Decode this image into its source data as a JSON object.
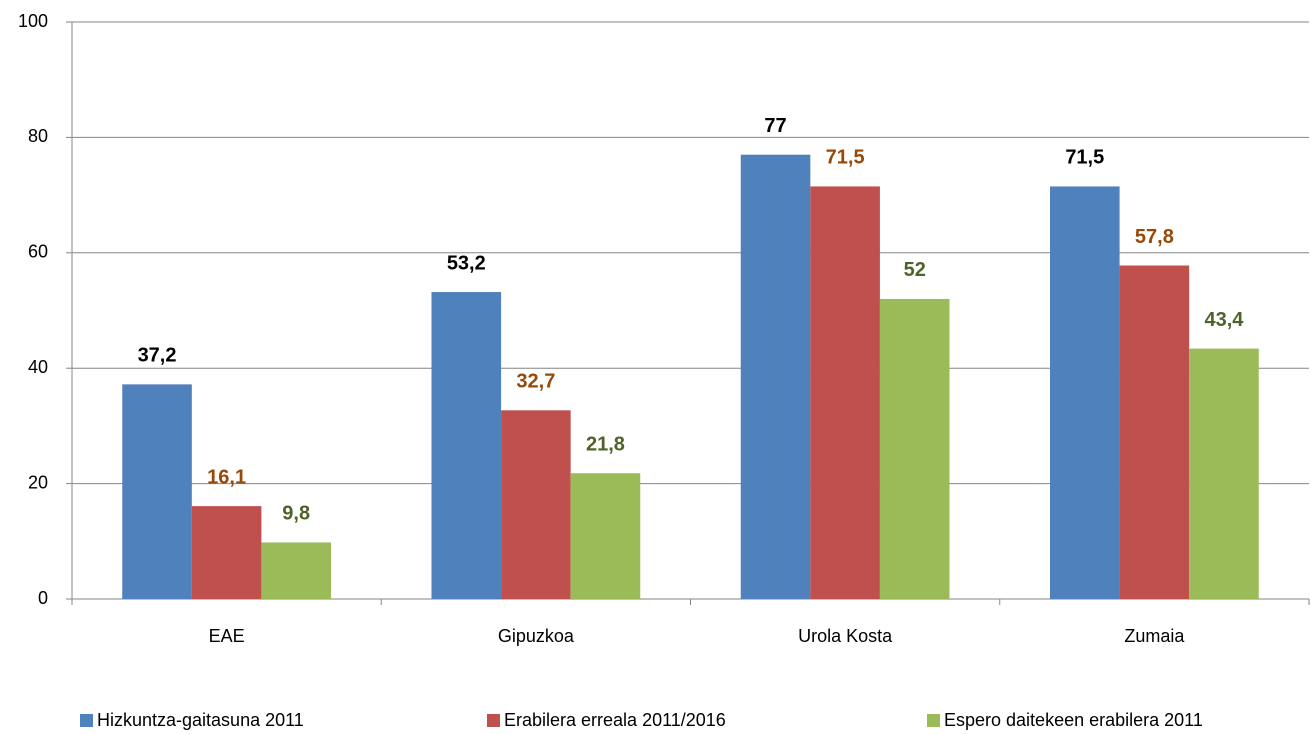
{
  "chart_data": {
    "type": "bar",
    "categories": [
      "EAE",
      "Gipuzkoa",
      "Urola Kosta",
      "Zumaia"
    ],
    "series": [
      {
        "name": "Hizkuntza-gaitasuna 2011",
        "color": "#4f81bd",
        "label_color": "#000000",
        "values": [
          37.2,
          53.2,
          77,
          71.5
        ],
        "value_labels": [
          "37,2",
          "53,2",
          "77",
          "71,5"
        ]
      },
      {
        "name": "Erabilera erreala 2011/2016",
        "color": "#c0504d",
        "label_color": "#984807",
        "values": [
          16.1,
          32.7,
          71.5,
          57.8
        ],
        "value_labels": [
          "16,1",
          "32,7",
          "71,5",
          "57,8"
        ]
      },
      {
        "name": "Espero daitekeen erabilera 2011",
        "color": "#9bbb59",
        "label_color": "#4f6228",
        "values": [
          9.8,
          21.8,
          52,
          43.4
        ],
        "value_labels": [
          "9,8",
          "21,8",
          "52",
          "43,4"
        ]
      }
    ],
    "ylim": [
      0,
      100
    ],
    "yticks": [
      0,
      20,
      40,
      60,
      80,
      100
    ],
    "grid": true,
    "legend": "bottom"
  }
}
